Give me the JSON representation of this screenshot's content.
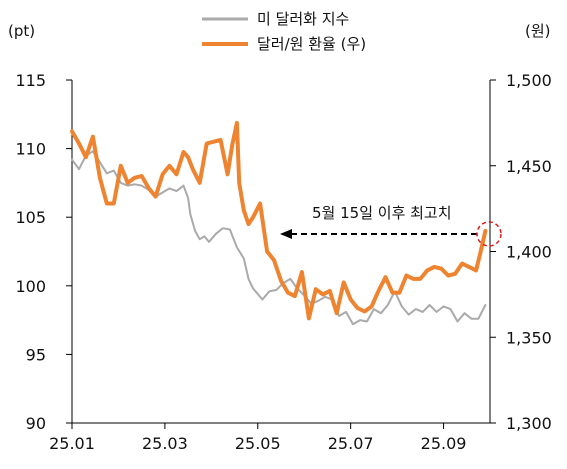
{
  "chart_data": {
    "type": "line",
    "left_unit": "(pt)",
    "right_unit": "(원)",
    "legend": [
      "미 달러화 지수",
      "달러/원 환율 (우)"
    ],
    "annotation": "5월 15일 이후 최고치",
    "x_ticks": [
      "25.01",
      "25.03",
      "25.05",
      "25.07",
      "25.09"
    ],
    "x_range": [
      0,
      18
    ],
    "left_axis": {
      "ticks": [
        "115",
        "110",
        "105",
        "100",
        "95",
        "90"
      ],
      "ylim": [
        90,
        115
      ]
    },
    "right_axis": {
      "ticks": [
        "1,500",
        "1,450",
        "1,400",
        "1,350",
        "1,300"
      ],
      "ylim": [
        1300,
        1500
      ]
    },
    "colors": {
      "dxy": "#aaaaaa",
      "usdkrw": "#ee8330"
    },
    "series": [
      {
        "name": "미 달러화 지수",
        "axis": "left",
        "x": [
          0,
          0.3,
          0.6,
          0.9,
          1.2,
          1.5,
          1.8,
          2.1,
          2.4,
          2.7,
          3.0,
          3.3,
          3.6,
          3.9,
          4.2,
          4.5,
          4.8,
          5.0,
          5.1,
          5.3,
          5.5,
          5.7,
          5.9,
          6.2,
          6.5,
          6.8,
          7.1,
          7.4,
          7.6,
          7.8,
          8.0,
          8.2,
          8.5,
          8.8,
          9.1,
          9.4,
          9.7,
          10.0,
          10.3,
          10.6,
          10.9,
          11.2,
          11.5,
          11.8,
          12.1,
          12.4,
          12.7,
          13.0,
          13.3,
          13.6,
          13.9,
          14.2,
          14.5,
          14.8,
          15.1,
          15.4,
          15.7,
          16.0,
          16.3,
          16.6,
          16.9,
          17.2,
          17.5,
          17.8
        ],
        "y": [
          109.2,
          108.5,
          109.5,
          109.8,
          109.0,
          108.2,
          108.4,
          107.5,
          107.3,
          107.4,
          107.3,
          107.0,
          106.5,
          106.8,
          107.1,
          106.9,
          107.3,
          106.4,
          105.2,
          104.0,
          103.4,
          103.6,
          103.2,
          103.8,
          104.2,
          104.1,
          102.8,
          102.0,
          100.5,
          99.8,
          99.4,
          99.0,
          99.6,
          99.7,
          100.2,
          100.5,
          99.8,
          99.3,
          98.7,
          98.9,
          99.2,
          99.0,
          97.8,
          98.1,
          97.2,
          97.5,
          97.4,
          98.3,
          98.0,
          98.6,
          99.6,
          98.5,
          97.9,
          98.3,
          98.1,
          98.6,
          98.1,
          98.5,
          98.3,
          97.4,
          98.0,
          97.6,
          97.6,
          98.6
        ]
      },
      {
        "name": "달러/원 환율 (우)",
        "axis": "right",
        "x": [
          0,
          0.3,
          0.6,
          0.9,
          1.2,
          1.5,
          1.8,
          2.1,
          2.4,
          2.7,
          3.0,
          3.3,
          3.6,
          3.9,
          4.2,
          4.5,
          4.8,
          5.0,
          5.2,
          5.5,
          5.8,
          6.1,
          6.4,
          6.7,
          6.9,
          7.1,
          7.2,
          7.4,
          7.6,
          7.8,
          8.1,
          8.4,
          8.7,
          9.0,
          9.3,
          9.6,
          9.9,
          10.2,
          10.5,
          10.8,
          11.1,
          11.4,
          11.7,
          12.0,
          12.3,
          12.6,
          12.9,
          13.2,
          13.5,
          13.8,
          14.1,
          14.4,
          14.7,
          15.0,
          15.3,
          15.6,
          15.9,
          16.2,
          16.5,
          16.8,
          17.1,
          17.4,
          17.6,
          17.8
        ],
        "y": [
          1470,
          1463,
          1455,
          1467,
          1443,
          1428,
          1428,
          1450,
          1440,
          1443,
          1444,
          1437,
          1432,
          1445,
          1450,
          1445,
          1458,
          1455,
          1448,
          1440,
          1463,
          1464,
          1465,
          1445,
          1462,
          1475,
          1440,
          1424,
          1416,
          1420,
          1428,
          1400,
          1395,
          1383,
          1376,
          1374,
          1388,
          1361,
          1378,
          1375,
          1377,
          1364,
          1382,
          1372,
          1367,
          1365,
          1368,
          1377,
          1385,
          1376,
          1376,
          1386,
          1384,
          1384,
          1389,
          1391,
          1390,
          1386,
          1387,
          1393,
          1391,
          1389,
          1400,
          1412
        ]
      }
    ]
  }
}
